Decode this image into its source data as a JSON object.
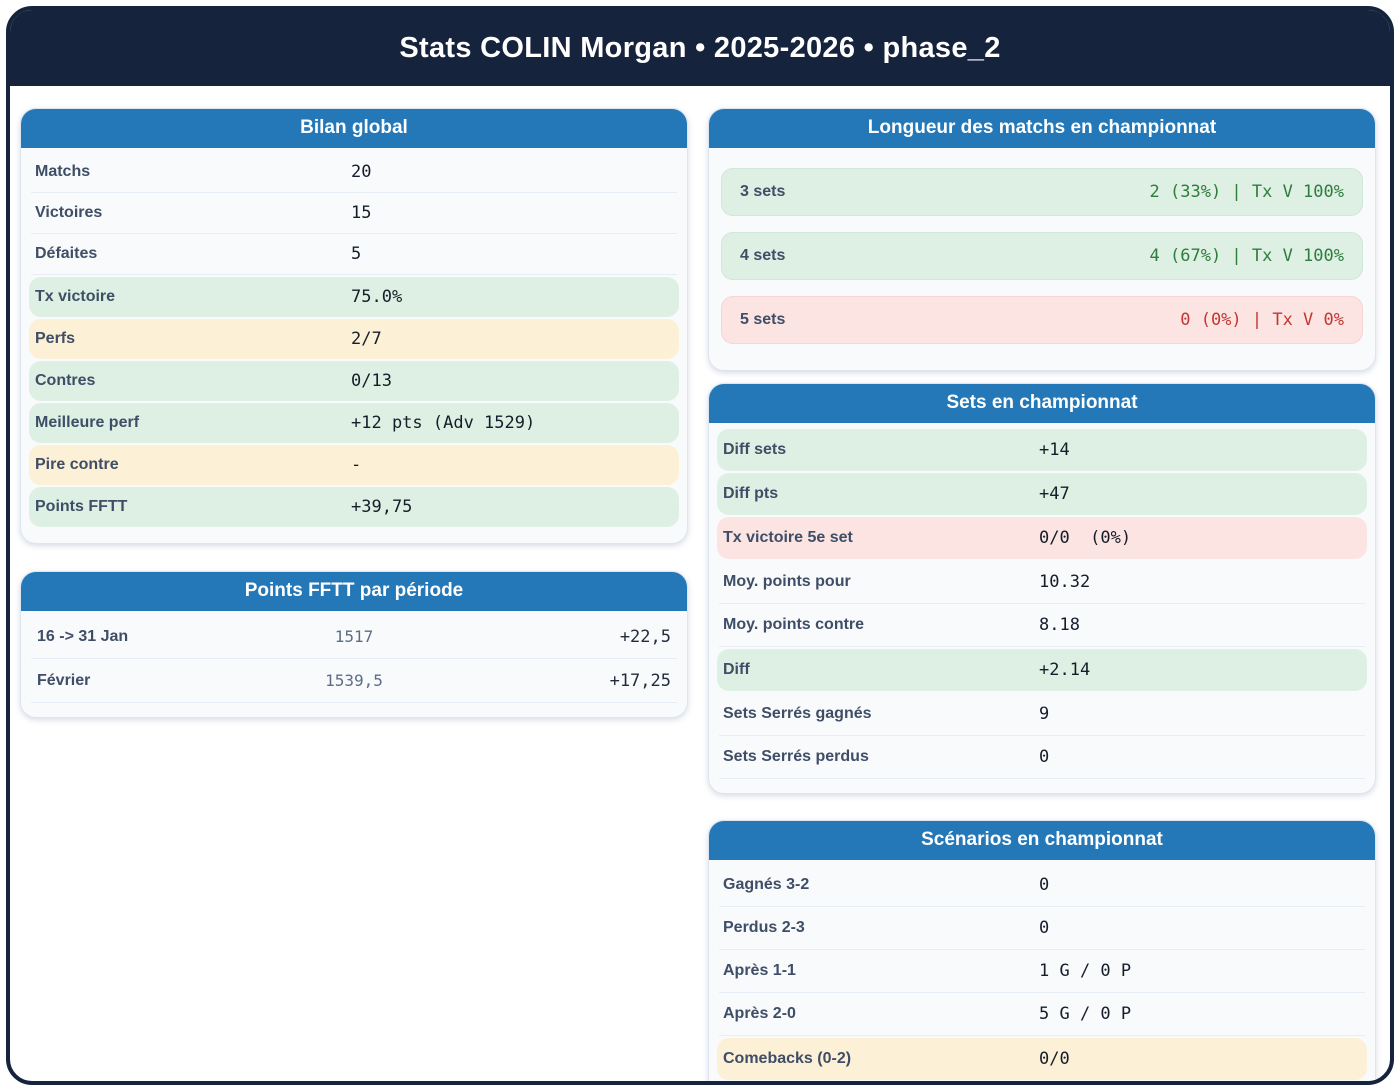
{
  "header": {
    "title": "Stats COLIN Morgan • 2025-2026 • phase_2"
  },
  "colors": {
    "frame_navy": "#16233c",
    "card_header_blue": "#2478b8",
    "card_background": "#f8fafc",
    "row_green_bg": "#def0e3",
    "row_yellow_bg": "#fcf0d6",
    "row_red_bg": "#fce4e3",
    "text_label": "#3f4e66",
    "text_value_green": "#2e7d3c",
    "text_value_red": "#c13832",
    "text_points_gray": "#5d6d85"
  },
  "cards": {
    "bilan": {
      "title": "Bilan global",
      "rows": [
        {
          "label": "Matchs",
          "value": "20",
          "tone": "plain"
        },
        {
          "label": "Victoires",
          "value": "15",
          "tone": "plain"
        },
        {
          "label": "Défaites",
          "value": "5",
          "tone": "plain"
        },
        {
          "label": "Tx victoire",
          "value": "75.0%",
          "tone": "green"
        },
        {
          "label": "Perfs",
          "value": "2/7",
          "tone": "yellow"
        },
        {
          "label": "Contres",
          "value": "0/13",
          "tone": "green"
        },
        {
          "label": "Meilleure perf",
          "value": "+12 pts (Adv 1529)",
          "tone": "green"
        },
        {
          "label": "Pire contre",
          "value": "-",
          "tone": "yellow"
        },
        {
          "label": "Points FFTT",
          "value": "+39,75",
          "tone": "green"
        }
      ]
    },
    "periodes": {
      "title": "Points FFTT par période",
      "rows": [
        {
          "label": "16 -> 31 Jan",
          "points": "1517",
          "delta": "+22,5"
        },
        {
          "label": "Février",
          "points": "1539,5",
          "delta": "+17,25"
        }
      ]
    },
    "longueur": {
      "title": "Longueur des matchs en championnat",
      "rows": [
        {
          "label": "3 sets",
          "value": "2 (33%) | Tx V 100%",
          "tone": "green"
        },
        {
          "label": "4 sets",
          "value": "4 (67%) | Tx V 100%",
          "tone": "green"
        },
        {
          "label": "5 sets",
          "value": "0 (0%) | Tx V 0%",
          "tone": "red"
        }
      ]
    },
    "sets": {
      "title": "Sets en championnat",
      "rows": [
        {
          "label": "Diff sets",
          "value": "+14",
          "tone": "green"
        },
        {
          "label": "Diff pts",
          "value": "+47",
          "tone": "green"
        },
        {
          "label": "Tx victoire 5e set",
          "value": "0/0  (0%)",
          "tone": "red"
        },
        {
          "label": "Moy. points pour",
          "value": "10.32",
          "tone": "plain"
        },
        {
          "label": "Moy. points contre",
          "value": "8.18",
          "tone": "plain"
        },
        {
          "label": "Diff",
          "value": "+2.14",
          "tone": "green"
        },
        {
          "label": "Sets Serrés gagnés",
          "value": "9",
          "tone": "plain"
        },
        {
          "label": "Sets Serrés perdus",
          "value": "0",
          "tone": "plain"
        }
      ]
    },
    "scenarios": {
      "title": "Scénarios en championnat",
      "rows": [
        {
          "label": "Gagnés 3-2",
          "value": "0",
          "tone": "plain"
        },
        {
          "label": "Perdus 2-3",
          "value": "0",
          "tone": "plain"
        },
        {
          "label": "Après 1-1",
          "value": "1 G / 0 P",
          "tone": "plain"
        },
        {
          "label": "Après 2-0",
          "value": "5 G / 0 P",
          "tone": "plain"
        },
        {
          "label": "Comebacks (0-2)",
          "value": "0/0",
          "tone": "yellow"
        }
      ]
    }
  }
}
